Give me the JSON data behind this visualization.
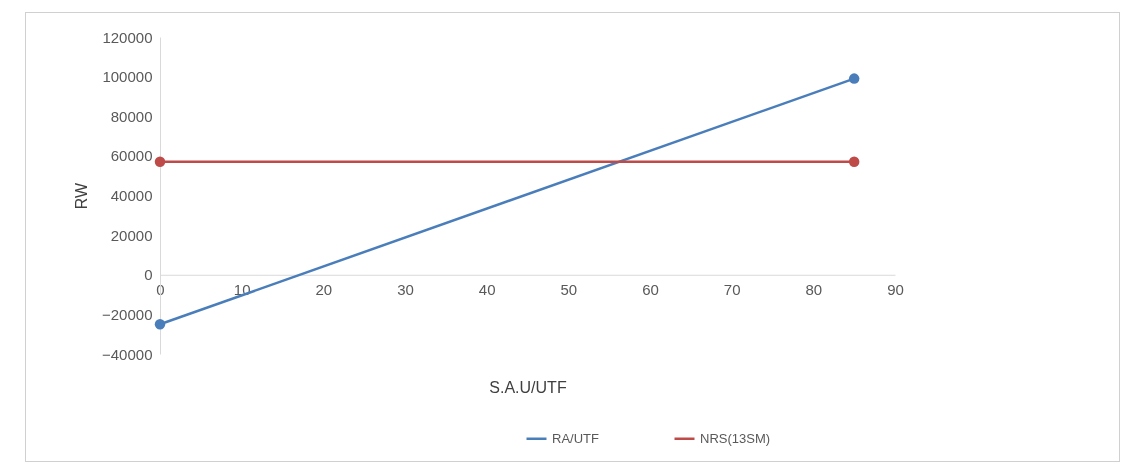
{
  "chart_data": {
    "type": "line",
    "xlabel": "S.A.U/UTF",
    "ylabel": "RW",
    "x": [
      0,
      85
    ],
    "series": [
      {
        "name": "RA/UTF",
        "color": "#4a7ebb",
        "values": [
          -25000,
          99000
        ]
      },
      {
        "name": "NRS(13SM)",
        "color": "#be4b48",
        "values": [
          57000,
          57000
        ]
      }
    ],
    "xlim": [
      0,
      90
    ],
    "xticks": [
      0,
      10,
      20,
      30,
      40,
      50,
      60,
      70,
      80,
      90
    ],
    "ylim": [
      -40000,
      120000
    ],
    "yticks": [
      -40000,
      -20000,
      0,
      20000,
      40000,
      60000,
      80000,
      100000,
      120000
    ],
    "grid": false,
    "legend": "bottom",
    "marker": "circle",
    "line_style": "solid"
  }
}
